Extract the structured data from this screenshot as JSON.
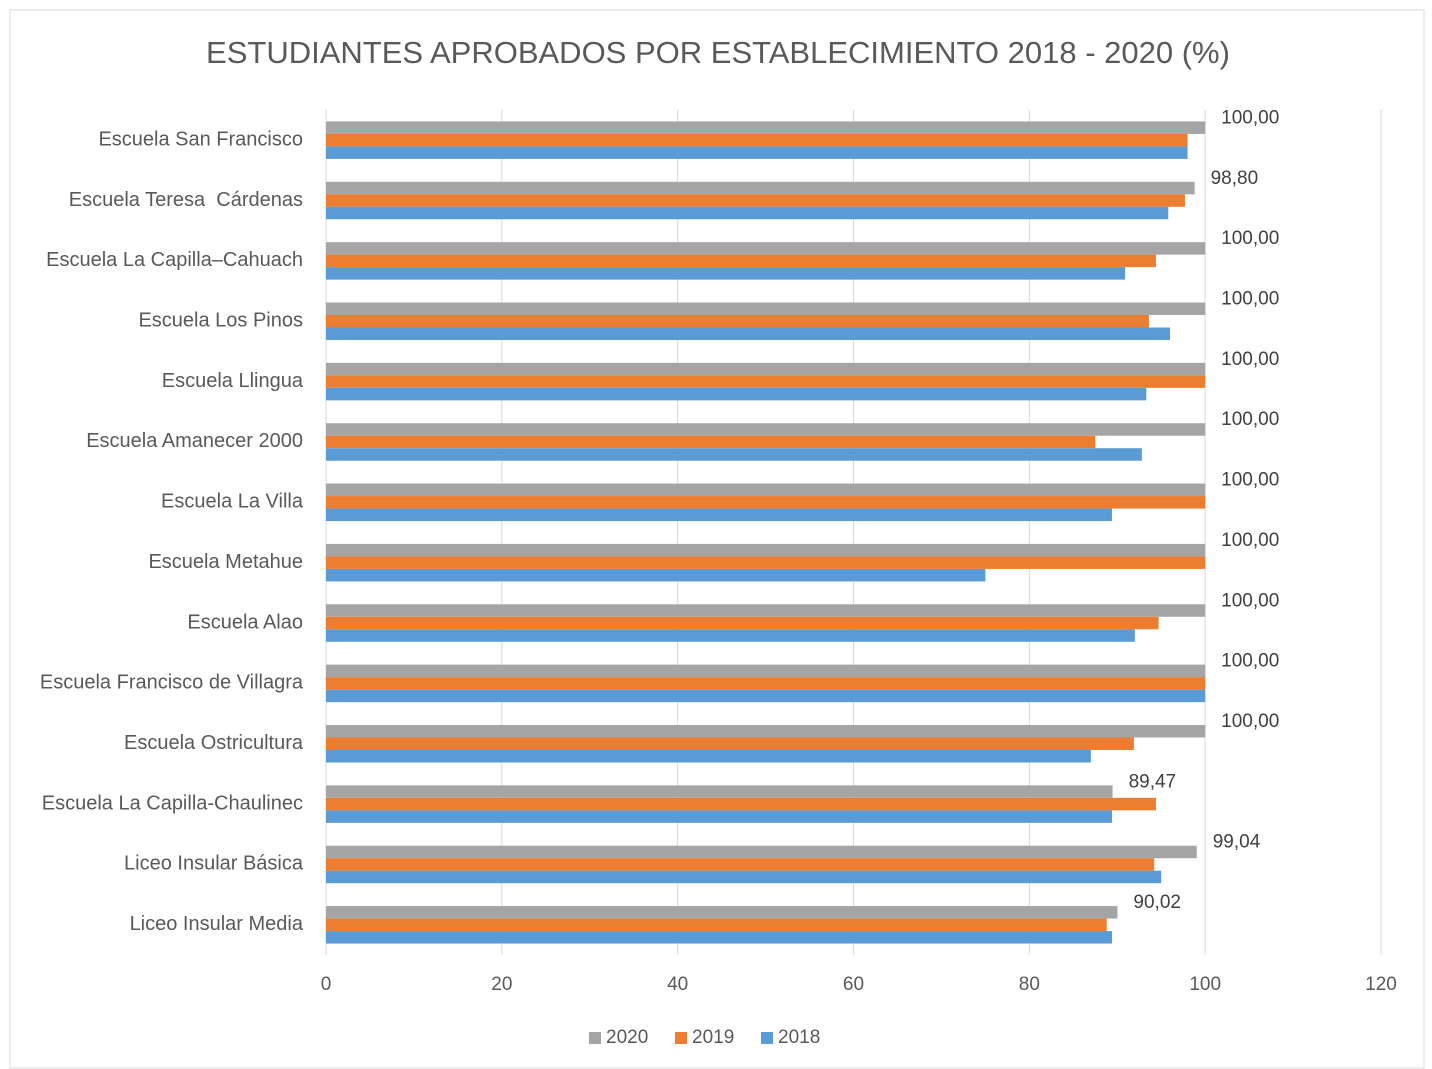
{
  "chart_data": {
    "type": "hbar",
    "title": "ESTUDIANTES APROBADOS POR ESTABLECIMIENTO 2018 - 2020 (%)",
    "categories": [
      "Escuela San Francisco",
      "Escuela Teresa  Cárdenas",
      "Escuela La Capilla–Cahuach",
      "Escuela Los Pinos",
      "Escuela Llingua",
      "Escuela Amanecer 2000",
      "Escuela La Villa",
      "Escuela Metahue",
      "Escuela Alao",
      "Escuela Francisco de Villagra",
      "Escuela Ostricultura",
      "Escuela La Capilla-Chaulinec",
      "Liceo Insular Básica",
      "Liceo Insular Media"
    ],
    "series": [
      {
        "name": "2020",
        "color": "#a5a5a5",
        "values": [
          100,
          98.8,
          100,
          100,
          100,
          100,
          100,
          100,
          100,
          100,
          100,
          89.47,
          99.04,
          90.02
        ],
        "value_labels": [
          "100,00",
          "98,80",
          "100,00",
          "100,00",
          "100,00",
          "100,00",
          "100,00",
          "100,00",
          "100,00",
          "100,00",
          "100,00",
          "89,47",
          "99,04",
          "90,02"
        ]
      },
      {
        "name": "2019",
        "color": "#ed7d31",
        "values": [
          98,
          97.7,
          94.4,
          93.6,
          100,
          87.5,
          100,
          100,
          94.7,
          100,
          91.9,
          94.4,
          94.2,
          88.8
        ]
      },
      {
        "name": "2018",
        "color": "#5b9bd5",
        "values": [
          98,
          95.8,
          90.9,
          96,
          93.3,
          92.8,
          89.4,
          75,
          92,
          100,
          87,
          89.4,
          95,
          89.4
        ]
      }
    ],
    "xlim": [
      0,
      120
    ],
    "xticks": [
      0,
      20,
      40,
      60,
      80,
      100,
      120
    ],
    "grid": true,
    "legend": "bottom"
  }
}
